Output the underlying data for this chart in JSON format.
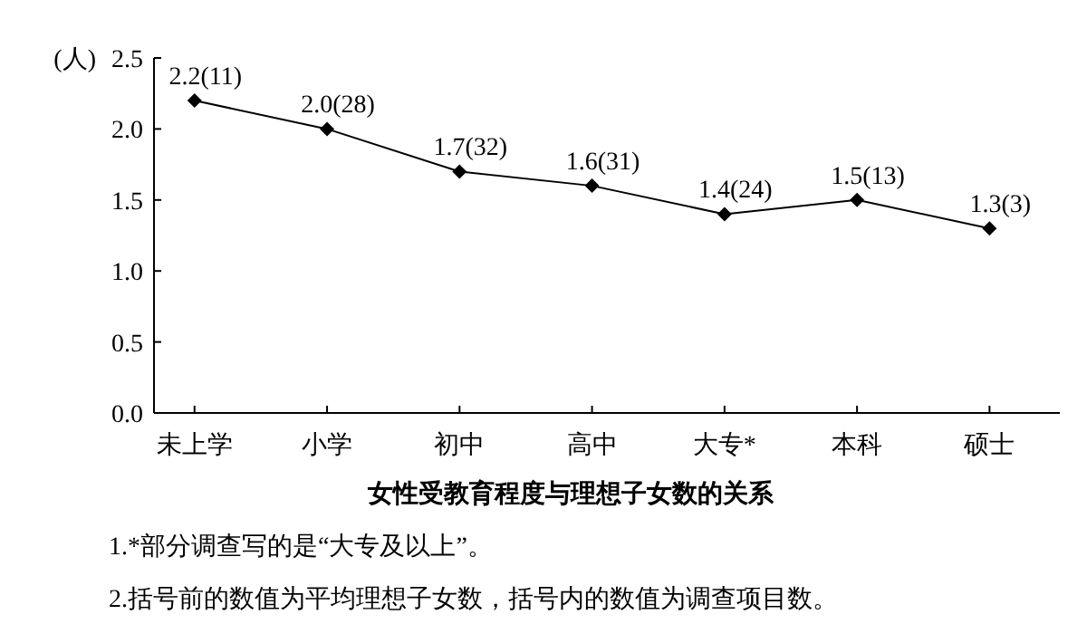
{
  "chart_data": {
    "type": "line",
    "title": "女性受教育程度与理想子女数的关系",
    "ylabel": "(人)",
    "categories": [
      "未上学",
      "小学",
      "初中",
      "高中",
      "大专*",
      "本科",
      "硕士"
    ],
    "values": [
      2.2,
      2.0,
      1.7,
      1.6,
      1.4,
      1.5,
      1.3
    ],
    "value_labels": [
      "2.2(11)",
      "2.0(28)",
      "1.7(32)",
      "1.6(31)",
      "1.4(24)",
      "1.5(13)",
      "1.3(3)"
    ],
    "color": "#000000",
    "marker": "diamond",
    "line_style": "solid",
    "grid": false,
    "ylim": [
      0,
      2.5
    ],
    "yticks": [
      {
        "value": 0,
        "label": "0.0"
      },
      {
        "value": 0.5,
        "label": "0.5"
      },
      {
        "value": 1,
        "label": "1.0"
      },
      {
        "value": 1.5,
        "label": "1.5"
      },
      {
        "value": 2,
        "label": "2.0"
      },
      {
        "value": 2.5,
        "label": "2.5"
      }
    ],
    "annotations": [
      "1.*部分调查写的是“大专及以上”。",
      "2.括号前的数值为平均理想子女数，括号内的数值为调查项目数。"
    ]
  }
}
